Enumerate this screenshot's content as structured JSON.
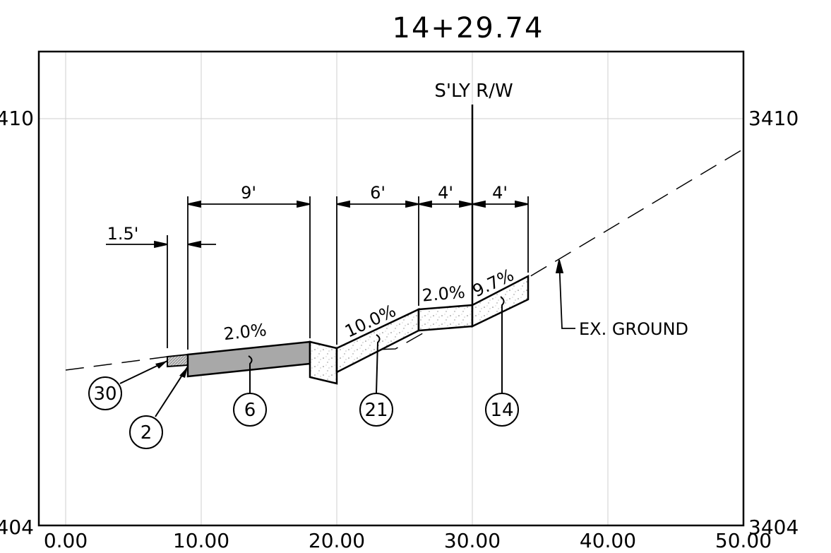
{
  "sheet": {
    "station": "14+29.74",
    "elevation_labels": {
      "left_top": "410",
      "left_bottom": "404",
      "right_top": "3410",
      "right_bottom": "3404"
    },
    "x_ticks": [
      "0.00",
      "10.00",
      "20.00",
      "30.00",
      "40.00",
      "50.00"
    ]
  },
  "annotations": {
    "row_label": "S'LY R/W",
    "ground_label": "EX. GROUND",
    "dimensions": {
      "curb": "1.5'",
      "d9": "9'",
      "d6": "6'",
      "d4a": "4'",
      "d4b": "4'"
    },
    "slopes": {
      "pavement": "2.0%",
      "ramp": "10.0%",
      "walk": "2.0%",
      "tie": "9.7%"
    },
    "callouts": {
      "c30": "30",
      "c2": "2",
      "c6": "6",
      "c21": "21",
      "c14": "14"
    }
  }
}
